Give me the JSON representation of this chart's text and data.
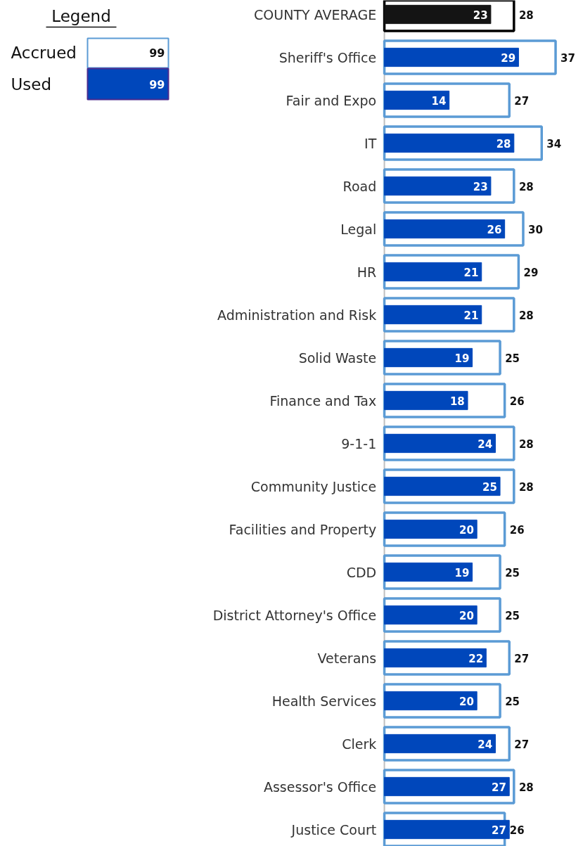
{
  "chart_data": {
    "type": "bar",
    "orientation": "horizontal",
    "legend_title": "Legend",
    "legend": "top left",
    "data_labels": true,
    "tick_labels": "y",
    "xlim": [
      0,
      43
    ],
    "categories": [
      "COUNTY AVERAGE",
      "Sheriff's Office",
      "Fair and Expo",
      "IT",
      "Road",
      "Legal",
      "HR",
      "Administration and Risk",
      "Solid Waste",
      "Finance and Tax",
      "9-1-1",
      "Community Justice",
      "Facilities and Property",
      "CDD",
      "District Attorney's Office",
      "Veterans",
      "Health Services",
      "Clerk",
      "Assessor's Office",
      "Justice Court"
    ],
    "series": [
      {
        "name": "Accrued",
        "color": "#5b9bd5",
        "colors": [
          "#000000",
          "#5b9bd5",
          "#5b9bd5",
          "#5b9bd5",
          "#5b9bd5",
          "#5b9bd5",
          "#5b9bd5",
          "#5b9bd5",
          "#5b9bd5",
          "#5b9bd5",
          "#5b9bd5",
          "#5b9bd5",
          "#5b9bd5",
          "#5b9bd5",
          "#5b9bd5",
          "#5b9bd5",
          "#5b9bd5",
          "#5b9bd5",
          "#5b9bd5",
          "#5b9bd5"
        ],
        "values": [
          28,
          37,
          27,
          34,
          28,
          30,
          29,
          28,
          25,
          26,
          28,
          28,
          26,
          25,
          25,
          27,
          25,
          27,
          28,
          26
        ]
      },
      {
        "name": "Used",
        "color": "#0047bb",
        "colors": [
          "#141414",
          "#0047bb",
          "#0047bb",
          "#0047bb",
          "#0047bb",
          "#0047bb",
          "#0047bb",
          "#0047bb",
          "#0047bb",
          "#0047bb",
          "#0047bb",
          "#0047bb",
          "#0047bb",
          "#0047bb",
          "#0047bb",
          "#0047bb",
          "#0047bb",
          "#0047bb",
          "#0047bb",
          "#0047bb"
        ],
        "values": [
          23,
          29,
          14,
          28,
          23,
          26,
          21,
          21,
          19,
          18,
          24,
          25,
          20,
          19,
          20,
          22,
          20,
          24,
          27,
          27
        ]
      }
    ],
    "annotations": [
      "99",
      "99"
    ]
  }
}
